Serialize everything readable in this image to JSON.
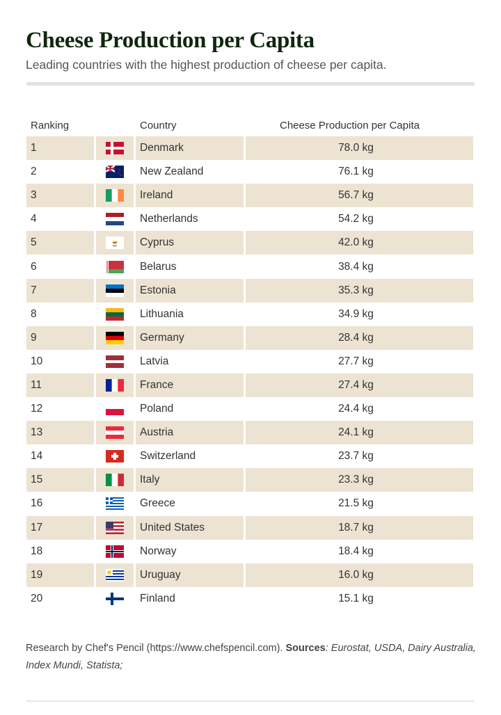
{
  "title": "Cheese Production per Capita",
  "subtitle": "Leading countries with the highest production of cheese per capita.",
  "chart_data": {
    "type": "table",
    "columns": [
      "Ranking",
      "",
      "Country",
      "Cheese Production per Capita"
    ],
    "unit": "kg",
    "rows": [
      {
        "rank": "1",
        "flag": "dk",
        "country": "Denmark",
        "value": "78.0 kg"
      },
      {
        "rank": "2",
        "flag": "nz",
        "country": "New Zealand",
        "value": "76.1 kg"
      },
      {
        "rank": "3",
        "flag": "ie",
        "country": "Ireland",
        "value": "56.7 kg"
      },
      {
        "rank": "4",
        "flag": "nl",
        "country": "Netherlands",
        "value": "54.2 kg"
      },
      {
        "rank": "5",
        "flag": "cy",
        "country": "Cyprus",
        "value": "42.0 kg"
      },
      {
        "rank": "6",
        "flag": "by",
        "country": "Belarus",
        "value": "38.4 kg"
      },
      {
        "rank": "7",
        "flag": "ee",
        "country": "Estonia",
        "value": "35.3 kg"
      },
      {
        "rank": "8",
        "flag": "lt",
        "country": "Lithuania",
        "value": "34.9 kg"
      },
      {
        "rank": "9",
        "flag": "de",
        "country": "Germany",
        "value": "28.4 kg"
      },
      {
        "rank": "10",
        "flag": "lv",
        "country": "Latvia",
        "value": "27.7 kg"
      },
      {
        "rank": "11",
        "flag": "fr",
        "country": "France",
        "value": "27.4 kg"
      },
      {
        "rank": "12",
        "flag": "pl",
        "country": "Poland",
        "value": "24.4 kg"
      },
      {
        "rank": "13",
        "flag": "at",
        "country": "Austria",
        "value": "24.1 kg"
      },
      {
        "rank": "14",
        "flag": "ch",
        "country": "Switzerland",
        "value": "23.7 kg"
      },
      {
        "rank": "15",
        "flag": "it",
        "country": "Italy",
        "value": "23.3 kg"
      },
      {
        "rank": "16",
        "flag": "gr",
        "country": "Greece",
        "value": "21.5 kg"
      },
      {
        "rank": "17",
        "flag": "us",
        "country": "United States",
        "value": "18.7 kg"
      },
      {
        "rank": "18",
        "flag": "no",
        "country": "Norway",
        "value": "18.4 kg"
      },
      {
        "rank": "19",
        "flag": "uy",
        "country": "Uruguay",
        "value": "16.0 kg"
      },
      {
        "rank": "20",
        "flag": "fi",
        "country": "Finland",
        "value": "15.1 kg"
      }
    ]
  },
  "footer": {
    "research": "Research by Chef's Pencil (https://www.chefspencil.com).",
    "sources_label": "Sources",
    "sources": ": Eurostat, USDA, Dairy Australia, Index Mundi, Statista;"
  },
  "colors": {
    "title": "#10260f",
    "row_alt": "#ece3d2"
  }
}
